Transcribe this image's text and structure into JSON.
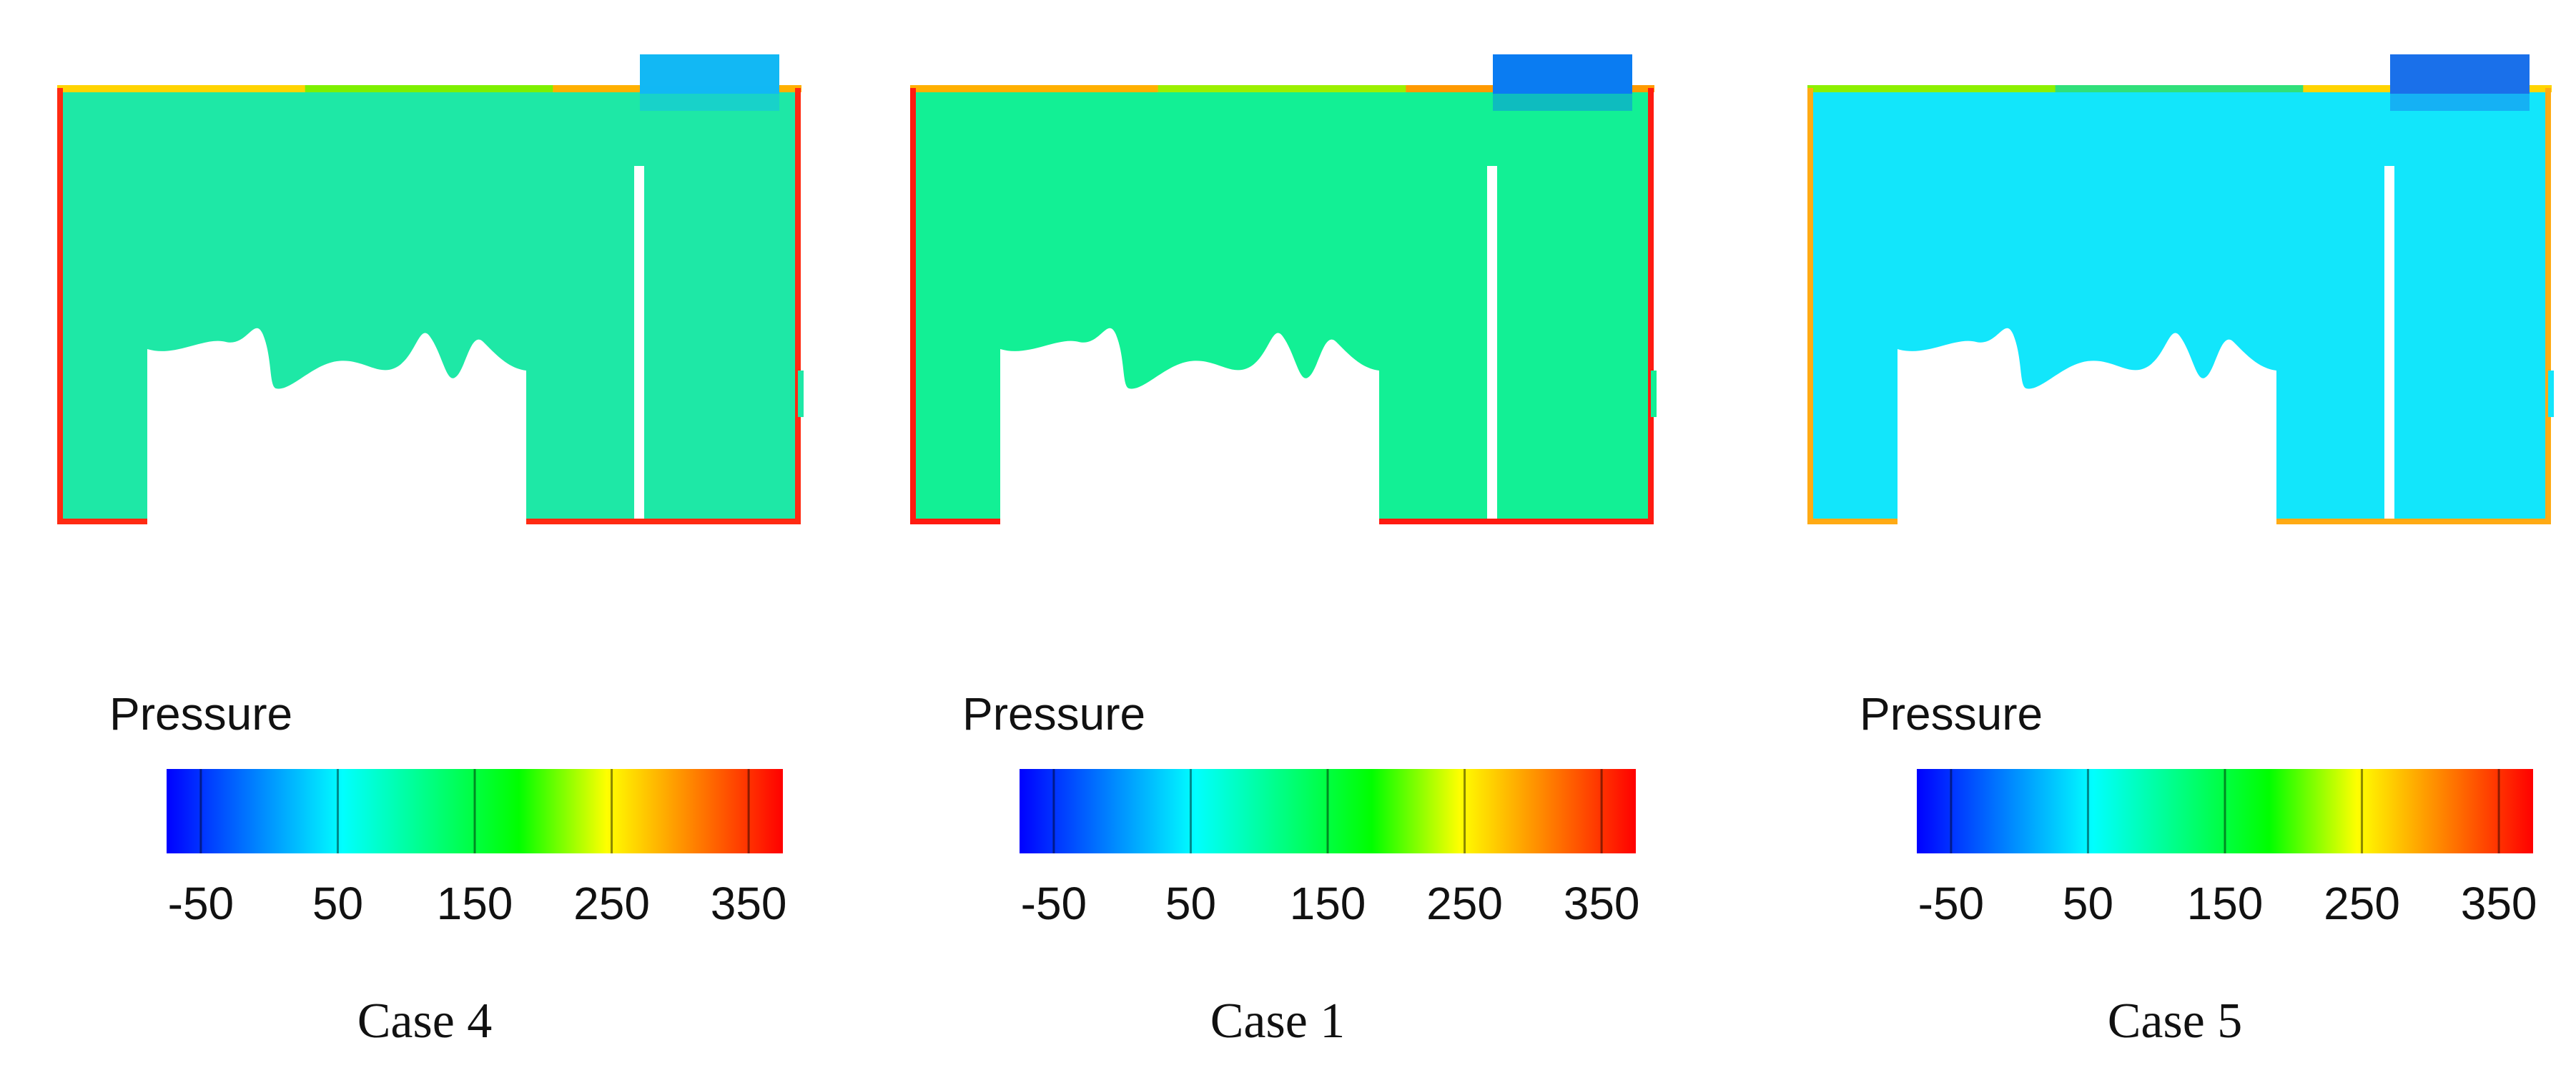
{
  "figure": {
    "legend_title": "Pressure",
    "legend_ticks": [
      -50,
      50,
      150,
      250,
      350
    ],
    "legend_range": [
      -75,
      375
    ],
    "colormap": [
      "#0000ff",
      "#0080ff",
      "#00ffff",
      "#00ff80",
      "#00ff00",
      "#ffff00",
      "#ff8000",
      "#ff0000"
    ]
  },
  "panels": [
    {
      "caption": "Case 4",
      "fluid_color": "#1ee8a6",
      "wall_color": "#ff2a12",
      "outlet_color": "#12b8f4",
      "top_strip_colors": [
        "#ffd400",
        "#7df000",
        "#ffb000"
      ]
    },
    {
      "caption": "Case 1",
      "fluid_color": "#12f095",
      "wall_color": "#ff1a10",
      "outlet_color": "#0a7cf2",
      "top_strip_colors": [
        "#ffb000",
        "#9bf000",
        "#ff9a00"
      ]
    },
    {
      "caption": "Case 5",
      "fluid_color": "#12e6fb",
      "wall_color": "#ffaa14",
      "outlet_color": "#1a70ea",
      "top_strip_colors": [
        "#8cf000",
        "#30e07a",
        "#ffd400"
      ]
    }
  ]
}
